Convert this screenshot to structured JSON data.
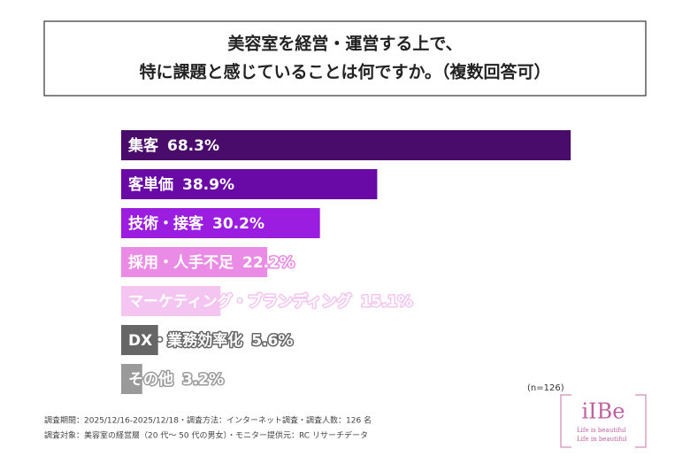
{
  "chart_data": {
    "type": "bar",
    "title": [
      "美容室を経営・運営する上で、",
      "特に課題と感じていることは何ですか。（複数回答可）"
    ],
    "categories": [
      "集客",
      "客単価",
      "技術・接客",
      "採用・人手不足",
      "マーケティング・ブランディング",
      "DX・業務効率化",
      "その他"
    ],
    "values": [
      68.3,
      38.9,
      30.2,
      22.2,
      15.1,
      5.6,
      3.2
    ],
    "value_labels": [
      "68.3%",
      "38.9%",
      "30.2%",
      "22.2%",
      "15.1%",
      "5.6%",
      "3.2%"
    ],
    "colors": [
      "#4a0c6b",
      "#6a0aa6",
      "#9a1de0",
      "#ea8ce6",
      "#f4c5f0",
      "#666666",
      "#9a9a9a"
    ],
    "note": "(n=126)",
    "footnotes": [
      "調査期間：2025/12/16-2025/12/18・調査方法：インターネット調査・調査人数：126 名",
      "調査対象：美容室の経営層（20 代～ 50 代の男女）・モニター提供元：RC リサーチデータ"
    ],
    "logo": {
      "name": "iIBe",
      "lines": [
        "Life is beautiful",
        "Life in beautiful"
      ]
    }
  }
}
